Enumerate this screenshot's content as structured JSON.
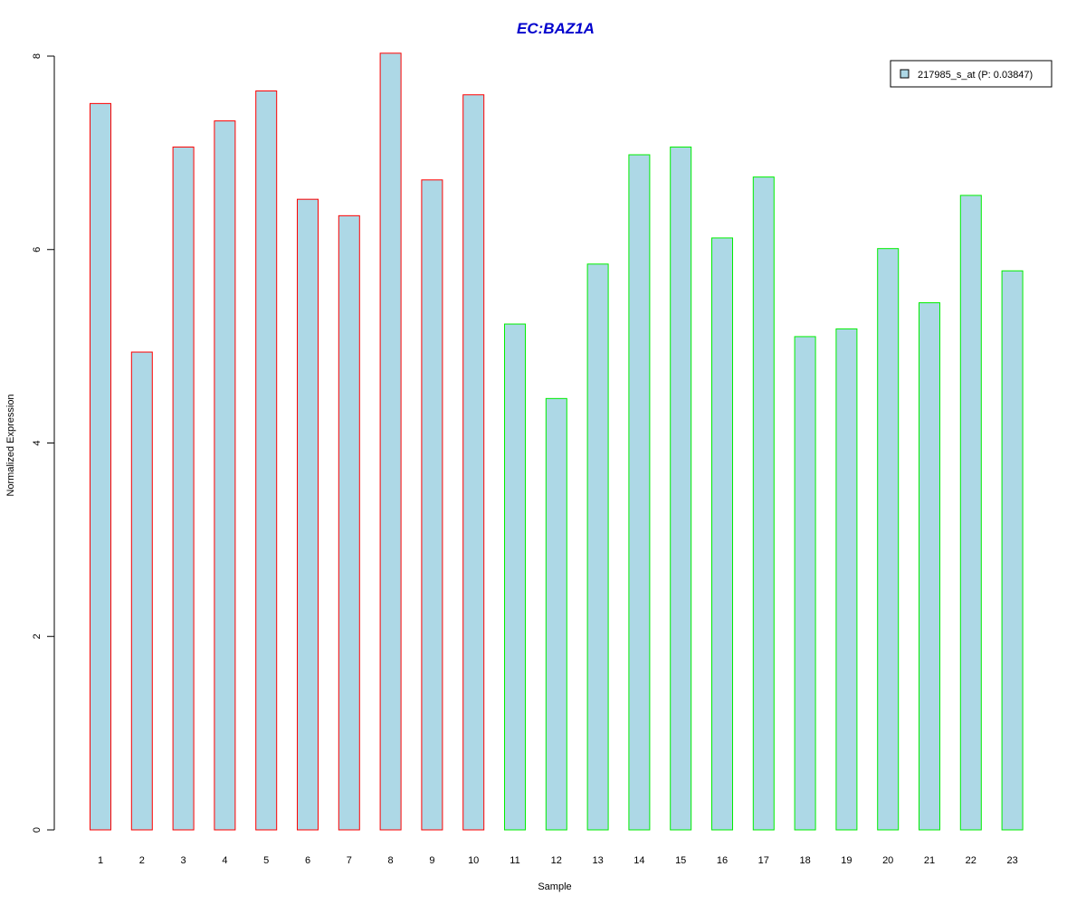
{
  "chart_data": {
    "type": "bar",
    "title": "EC:BAZ1A",
    "xlabel": "Sample",
    "ylabel": "Normalized Expression",
    "categories": [
      "1",
      "2",
      "3",
      "4",
      "5",
      "6",
      "7",
      "8",
      "9",
      "10",
      "11",
      "12",
      "13",
      "14",
      "15",
      "16",
      "17",
      "18",
      "19",
      "20",
      "21",
      "22",
      "23"
    ],
    "series": [
      {
        "name": "217985_s_at (P: 0.03847)",
        "values": [
          7.51,
          4.94,
          7.06,
          7.33,
          7.64,
          6.52,
          6.35,
          8.03,
          6.72,
          7.6,
          5.23,
          4.46,
          5.85,
          6.98,
          7.06,
          6.12,
          6.75,
          5.1,
          5.18,
          6.01,
          5.45,
          6.56,
          5.78
        ]
      }
    ],
    "group_colors": [
      "#ff0000",
      "#ff0000",
      "#ff0000",
      "#ff0000",
      "#ff0000",
      "#ff0000",
      "#ff0000",
      "#ff0000",
      "#ff0000",
      "#ff0000",
      "#00ee00",
      "#00ee00",
      "#00ee00",
      "#00ee00",
      "#00ee00",
      "#00ee00",
      "#00ee00",
      "#00ee00",
      "#00ee00",
      "#00ee00",
      "#00ee00",
      "#00ee00",
      "#00ee00"
    ],
    "yticks": [
      0,
      2,
      4,
      6,
      8
    ],
    "ylim": [
      0,
      8.05
    ],
    "bar_fill": "#add8e6",
    "title_color": "#0000cd",
    "legend_position": "top-right",
    "grid": false
  }
}
